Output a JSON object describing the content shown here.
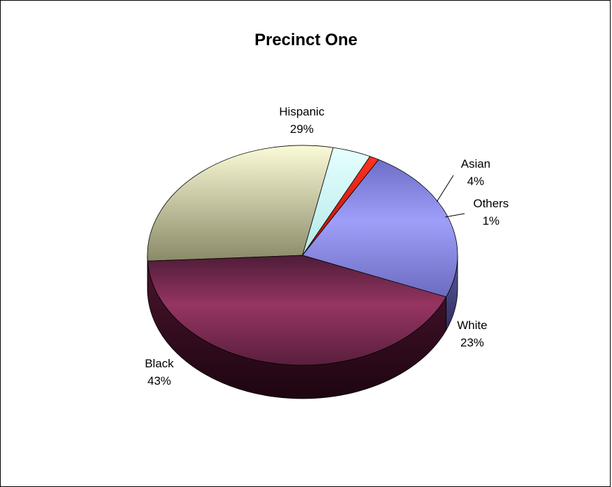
{
  "chart_data": {
    "type": "pie",
    "title": "Precinct One",
    "slices": [
      {
        "label": "Hispanic",
        "value": 29,
        "value_label": "29%",
        "color": "#f3f0c4"
      },
      {
        "label": "Asian",
        "value": 4,
        "value_label": "4%",
        "color": "#d9fbfb"
      },
      {
        "label": "Others",
        "value": 1,
        "value_label": "1%",
        "color": "#d21a10"
      },
      {
        "label": "White",
        "value": 23,
        "value_label": "23%",
        "color": "#9a9af0"
      },
      {
        "label": "Black",
        "value": 43,
        "value_label": "43%",
        "color": "#8e2f5c"
      }
    ],
    "style": "3d",
    "legend": "none"
  }
}
